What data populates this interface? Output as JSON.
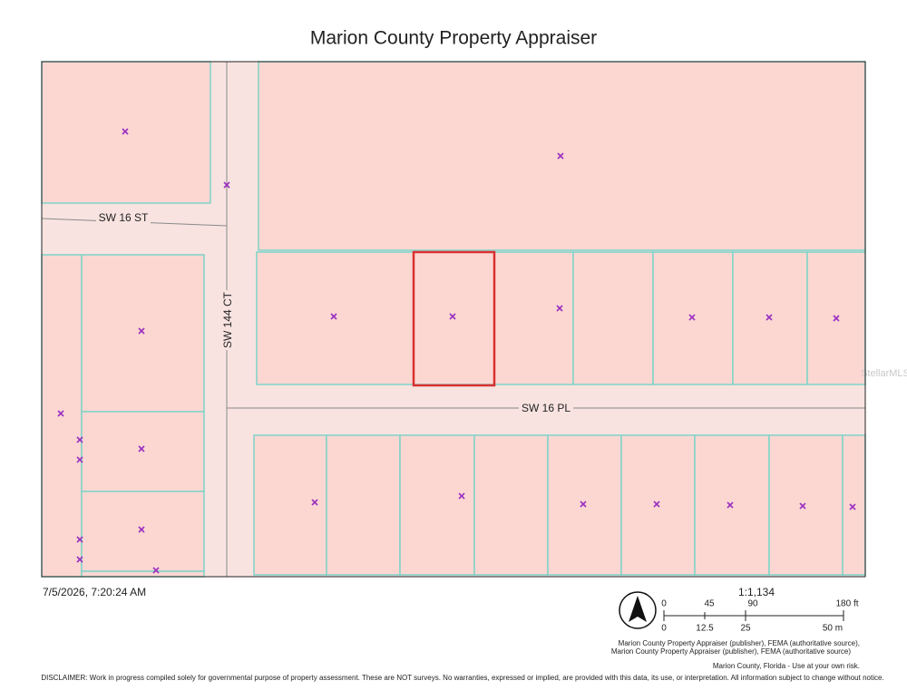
{
  "header": {
    "title": "Marion County Property Appraiser"
  },
  "map": {
    "roads": [
      "SW 16 ST",
      "SW 144 CT",
      "SW 16 PL"
    ],
    "watermark": "StellarMLS"
  },
  "footer": {
    "timestamp": "7/5/2026, 7:20:24 AM",
    "scale": "1:1,134",
    "scale_bar_feet": [
      "0",
      "45",
      "90",
      "180 ft"
    ],
    "scale_bar_meters": [
      "0",
      "12.5",
      "25",
      "50 m"
    ],
    "attribution": [
      "Marion County Property Appraiser (publisher), FEMA (authoritative source),",
      "Marion County Property Appraiser (publisher), FEMA (authoritative source)"
    ],
    "note": "Marion County, Florida - Use at your own risk.",
    "disclaimer": "DISCLAIMER: Work in progress compiled solely for governmental purpose of property assessment. These are NOT surveys. No warranties, expressed or implied, are provided with this data, its use, or interpretation. All information subject to change without notice."
  }
}
